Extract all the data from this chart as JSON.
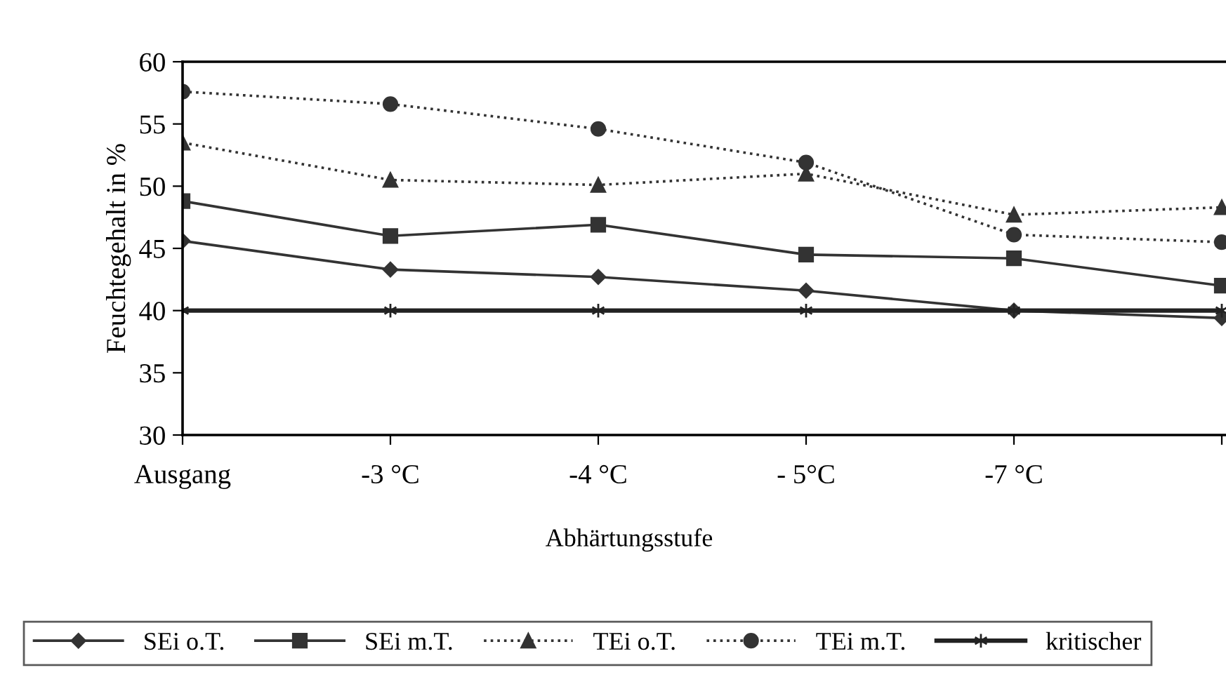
{
  "chart_data": {
    "type": "line",
    "xlabel": "Abhärtungsstufe",
    "ylabel": "Feuchtegehalt in %",
    "categories": [
      "Ausgang",
      "-3 °C",
      "-4 °C",
      "- 5°C",
      "-7 °C",
      null
    ],
    "ylim": [
      30,
      60
    ],
    "yticks": [
      30,
      35,
      40,
      45,
      50,
      55,
      60
    ],
    "grid": false,
    "legend": "bottom",
    "series": [
      {
        "name": "SEi o.T.",
        "color": "#333333",
        "marker": "diamond",
        "line_style": "solid",
        "values": [
          45.6,
          43.3,
          42.7,
          41.6,
          40.0,
          39.4
        ]
      },
      {
        "name": "SEi m.T.",
        "color": "#333333",
        "marker": "square",
        "line_style": "solid",
        "values": [
          48.8,
          46.0,
          46.9,
          44.5,
          44.2,
          42.0
        ]
      },
      {
        "name": "TEi o.T.",
        "color": "#333333",
        "marker": "triangle",
        "line_style": "dotted",
        "values": [
          53.5,
          50.5,
          50.1,
          51.0,
          47.7,
          48.3
        ]
      },
      {
        "name": "TEi m.T.",
        "color": "#333333",
        "marker": "circle",
        "line_style": "dotted",
        "values": [
          57.6,
          56.6,
          54.6,
          51.9,
          46.1,
          45.5
        ]
      },
      {
        "name": "kritischer",
        "color": "#222222",
        "marker": "cross",
        "line_style": "solid",
        "values": [
          40,
          40,
          40,
          40,
          40,
          40
        ]
      }
    ]
  }
}
